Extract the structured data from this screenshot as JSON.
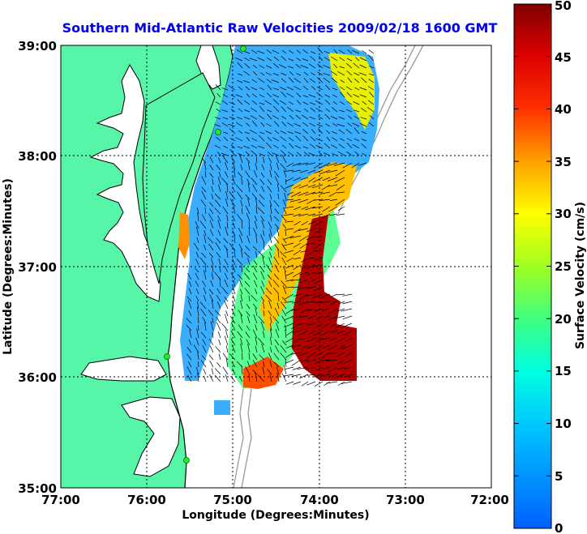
{
  "figure": {
    "title": "Southern Mid-Atlantic Raw Velocities 2009/02/18 1600 GMT"
  },
  "axes": {
    "xlabel": "Longitude (Degrees:Minutes)",
    "ylabel": "Latitude (Degrees:Minutes)",
    "xticks": [
      "77:00",
      "76:00",
      "75:00",
      "74:00",
      "73:00",
      "72:00"
    ],
    "yticks": [
      "39:00",
      "38:00",
      "37:00",
      "36:00",
      "35:00"
    ]
  },
  "colorbar": {
    "label": "Surface Velocity (cm/s)",
    "ticks": [
      "0",
      "5",
      "10",
      "15",
      "20",
      "25",
      "30",
      "35",
      "40",
      "45",
      "50"
    ],
    "range": [
      0,
      50
    ],
    "colormap": "jet"
  },
  "colors": {
    "land": "#57f5a8",
    "coastline": "#000000",
    "bathymetry": "#999999",
    "station": "#22ee22",
    "title": "#0000ee"
  }
}
